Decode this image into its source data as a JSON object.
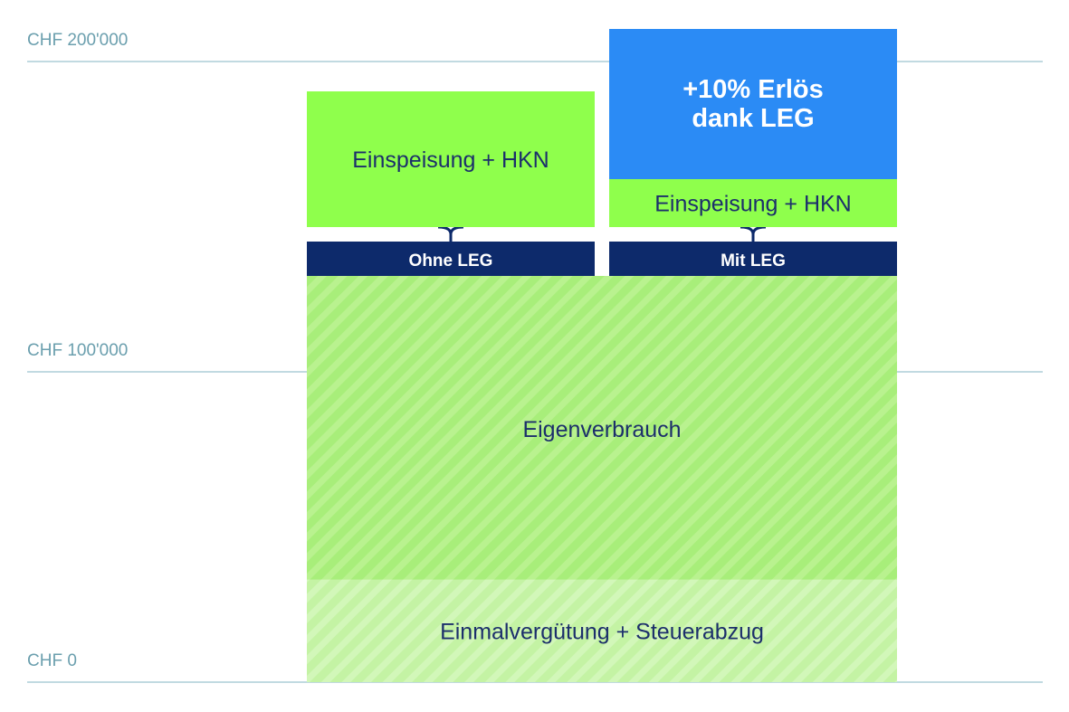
{
  "chart_data": {
    "type": "bar",
    "stacked": true,
    "currency": "CHF",
    "title": "",
    "xlabel": "",
    "ylabel": "",
    "ylim": [
      0,
      200000
    ],
    "yticks": [
      0,
      100000,
      200000
    ],
    "ytick_labels": [
      "CHF 0",
      "CHF 100'000",
      "CHF 200'000"
    ],
    "grid": true,
    "categories": [
      "Ohne LEG",
      "Mit LEG"
    ],
    "shared_segments": [
      {
        "name": "Einmalvergütung + Steuerabzug",
        "start": 0,
        "end": 33000,
        "style": "hatch-light"
      },
      {
        "name": "Eigenverbrauch",
        "start": 33000,
        "end": 130000,
        "style": "hatch"
      }
    ],
    "series": [
      {
        "name": "Einspeisung + HKN",
        "values": [
          44000,
          16000
        ],
        "base": [
          136000,
          136000
        ]
      },
      {
        "name": "+10% Erlös dank LEG",
        "values": [
          0,
          49000
        ],
        "base": [
          0,
          152000
        ]
      }
    ],
    "bonus_label_lines": [
      "+10% Erlös",
      "dank LEG"
    ],
    "colors": {
      "feed_in": "#8fff4c",
      "bonus": "#2b8bf5",
      "category_bar": "#0d2a6b",
      "hatch_base": "#a8ee7a",
      "hatch_stripe": "#b9f28f",
      "hatch_light_base": "#c4f3a4",
      "hatch_light_stripe": "#d2f7b9",
      "grid": "#9cc4cf",
      "tick_text": "#6b9fae",
      "segment_text": "#1c2f6b"
    }
  }
}
